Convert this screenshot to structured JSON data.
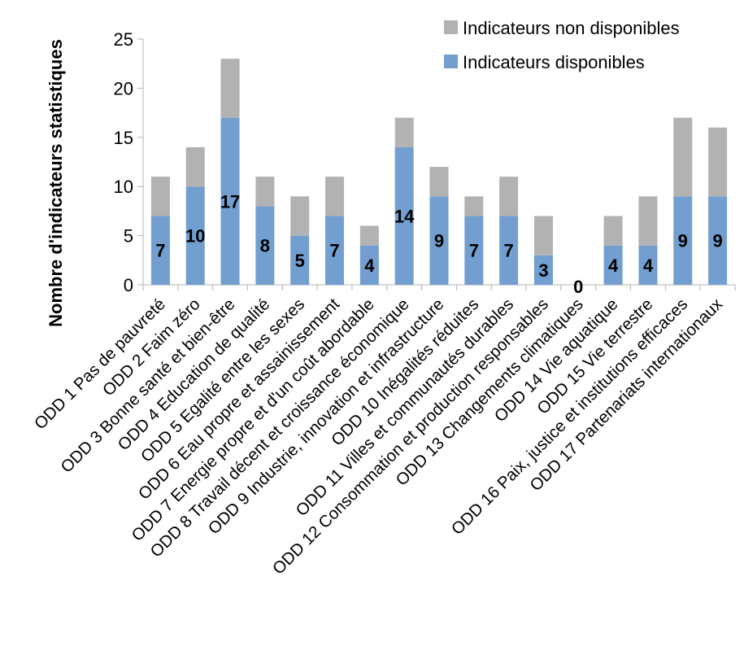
{
  "chart_data": {
    "type": "bar",
    "stacked": true,
    "ylabel": "Nombre d'indicateurs statistiques",
    "xlabel": "",
    "ylim": [
      0,
      25
    ],
    "yticks": [
      "0",
      "5",
      "10",
      "15",
      "20",
      "25"
    ],
    "grid": false,
    "legend_position": "top-right",
    "categories": [
      "ODD 1 Pas de pauvreté",
      "ODD 2 Faim zéro",
      "ODD 3 Bonne santé et bien-être",
      "ODD 4 Education de qualité",
      "ODD 5 Egalité entre les sexes",
      "ODD 6 Eau propre et assainissement",
      "ODD 7 Energie propre et d'un coût abordable",
      "ODD 8 Travail décent et croissance économique",
      "ODD 9 Industrie, innovation et infrastructure",
      "ODD 10 Inégalités réduites",
      "ODD 11 Villes et communautés durables",
      "ODD 12 Consommation et production responsables",
      "ODD 13 Changements climatiques",
      "ODD 14 Vie aquatique",
      "ODD 15 Vie terrestre",
      "ODD 16 Paix, justice et institutions efficaces",
      "ODD 17 Partenariats internationaux"
    ],
    "series": [
      {
        "name": "Indicateurs disponibles",
        "color": "#729fcf",
        "values": [
          7,
          10,
          17,
          8,
          5,
          7,
          4,
          14,
          9,
          7,
          7,
          3,
          0,
          4,
          4,
          9,
          9
        ],
        "data_labels": [
          "7",
          "10",
          "17",
          "8",
          "5",
          "7",
          "4",
          "14",
          "9",
          "7",
          "7",
          "3",
          "0",
          "4",
          "4",
          "9",
          "9"
        ]
      },
      {
        "name": "Indicateurs non disponibles",
        "color": "#b2b2b2",
        "values": [
          4,
          4,
          6,
          3,
          4,
          4,
          2,
          3,
          3,
          2,
          4,
          4,
          0,
          3,
          5,
          8,
          7
        ]
      }
    ],
    "legend": [
      "Indicateurs non disponibles",
      "Indicateurs disponibles"
    ]
  }
}
